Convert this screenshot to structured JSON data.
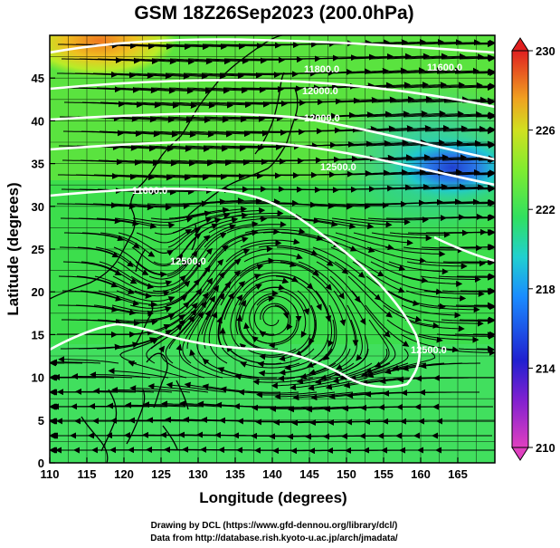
{
  "title": "GSM 18Z26Sep2023 (200.0hPa)",
  "x_axis": {
    "label": "Longitude (degrees)",
    "ticks": [
      "110",
      "115",
      "120",
      "125",
      "130",
      "135",
      "140",
      "145",
      "150",
      "155",
      "160",
      "165"
    ]
  },
  "y_axis": {
    "label": "Latitude  (degrees)",
    "ticks": [
      "0",
      "5",
      "10",
      "15",
      "20",
      "25",
      "30",
      "35",
      "40",
      "45"
    ]
  },
  "colorbar": {
    "ticks": [
      "210",
      "214",
      "218",
      "222",
      "226",
      "230"
    ],
    "colors": [
      "#e040c0",
      "#2020d0",
      "#1a8cff",
      "#20d0d0",
      "#30e060",
      "#a0f020",
      "#f0c020",
      "#f08020",
      "#e02020"
    ]
  },
  "contour_labels": [
    "11800.0",
    "12000.0",
    "12000.0",
    "11600.0",
    "11600.0",
    "12500.0",
    "12500.0",
    "12500.0"
  ],
  "credits": {
    "line1": "Drawing by DCL (https://www.gfd-dennou.org/library/dcl/)",
    "line2": "Data from http://database.rish.kyoto-u.ac.jp/arch/jmadata/"
  },
  "chart_data": {
    "type": "heatmap",
    "title": "GSM 18Z26Sep2023 (200.0hPa)",
    "xlabel": "Longitude (degrees)",
    "ylabel": "Latitude  (degrees)",
    "xlim": [
      110,
      170
    ],
    "ylim": [
      0,
      50
    ],
    "colorbar_range": [
      210,
      230
    ],
    "colorbar_ticks": [
      210,
      214,
      218,
      222,
      226,
      230
    ],
    "overlays": [
      "wind streamlines",
      "geopotential height contours (white)",
      "coastlines",
      "1-degree grid"
    ],
    "field_notes": {
      "warm_max_near": [
        117,
        49
      ],
      "cold_min_near": [
        163,
        37
      ]
    }
  }
}
